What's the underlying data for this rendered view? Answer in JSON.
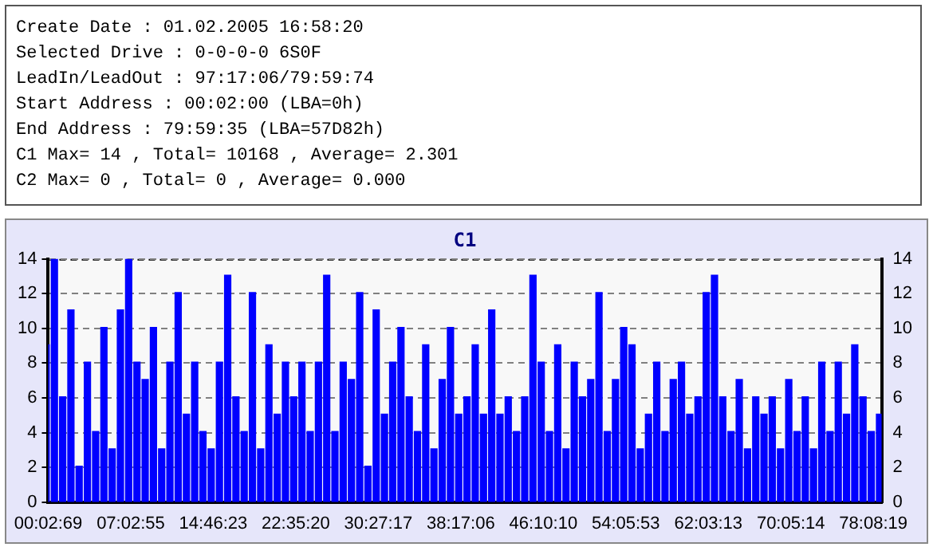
{
  "chart_data": {
    "type": "bar",
    "title": "C1",
    "annotations": [
      "Create Date : 01.02.2005 16:58:20",
      "Selected Drive : 0-0-0-0 6S0F",
      "LeadIn/LeadOut : 97:17:06/79:59:74",
      "Start Address : 00:02:00 (LBA=0h)",
      "End Address : 79:59:35 (LBA=57D82h)",
      "C1 Max= 14 , Total= 10168 , Average= 2.301",
      "C2 Max= 0 , Total= 0 , Average= 0.000"
    ],
    "categories": [
      "00:02:69",
      null,
      null,
      null,
      null,
      null,
      null,
      null,
      null,
      null,
      "07:02:55",
      null,
      null,
      null,
      null,
      null,
      null,
      null,
      null,
      null,
      "14:46:23",
      null,
      null,
      null,
      null,
      null,
      null,
      null,
      null,
      null,
      "22:35:20",
      null,
      null,
      null,
      null,
      null,
      null,
      null,
      null,
      null,
      "30:27:17",
      null,
      null,
      null,
      null,
      null,
      null,
      null,
      null,
      null,
      "38:17:06",
      null,
      null,
      null,
      null,
      null,
      null,
      null,
      null,
      null,
      "46:10:10",
      null,
      null,
      null,
      null,
      null,
      null,
      null,
      null,
      null,
      "54:05:53",
      null,
      null,
      null,
      null,
      null,
      null,
      null,
      null,
      null,
      "62:03:13",
      null,
      null,
      null,
      null,
      null,
      null,
      null,
      null,
      null,
      "70:05:14",
      null,
      null,
      null,
      null,
      null,
      null,
      null,
      null,
      null,
      "78:08:19",
      null
    ],
    "color": "#0000ff",
    "values": [
      9,
      14,
      6,
      11,
      2,
      8,
      4,
      10,
      3,
      11,
      14,
      8,
      7,
      10,
      3,
      8,
      12,
      5,
      8,
      4,
      3,
      8,
      13,
      6,
      4,
      12,
      3,
      9,
      5,
      8,
      6,
      8,
      4,
      8,
      13,
      4,
      8,
      7,
      12,
      2,
      11,
      5,
      8,
      10,
      6,
      4,
      9,
      3,
      7,
      10,
      5,
      6,
      9,
      5,
      11,
      5,
      6,
      4,
      6,
      13,
      8,
      4,
      9,
      3,
      8,
      6,
      7,
      12,
      4,
      7,
      10,
      9,
      3,
      5,
      8,
      4,
      7,
      8,
      5,
      6,
      12,
      13,
      6,
      4,
      7,
      3,
      6,
      5,
      6,
      3,
      7,
      4,
      6,
      3,
      8,
      4,
      8,
      5,
      9,
      6,
      4,
      5
    ],
    "ylim": [
      0,
      14
    ],
    "yticks": [
      0,
      2,
      4,
      6,
      8,
      10,
      12,
      14
    ],
    "y2lim": [
      0,
      14
    ],
    "y2ticks": [
      0,
      2,
      4,
      6,
      8,
      10,
      12,
      14
    ],
    "grid": "y",
    "legend": false
  }
}
